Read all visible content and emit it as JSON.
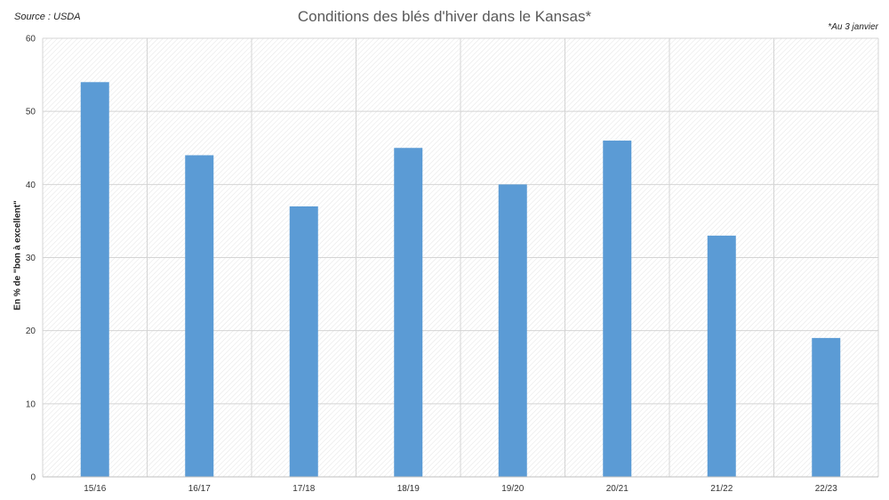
{
  "header": {
    "source": "Source : USDA",
    "note": "*Au 3 janvier"
  },
  "chart_data": {
    "type": "bar",
    "title": "Conditions des blés d'hiver dans le Kansas*",
    "xlabel": "",
    "ylabel": "En % de \"bon à excellent\"",
    "categories": [
      "15/16",
      "16/17",
      "17/18",
      "18/19",
      "19/20",
      "20/21",
      "21/22",
      "22/23"
    ],
    "values": [
      54,
      44,
      37,
      45,
      40,
      46,
      33,
      19
    ],
    "ylim": [
      0,
      60
    ],
    "yticks": [
      0,
      10,
      20,
      30,
      40,
      50,
      60
    ],
    "grid": true,
    "bar_color": "#5b9bd5",
    "legend": "none"
  }
}
